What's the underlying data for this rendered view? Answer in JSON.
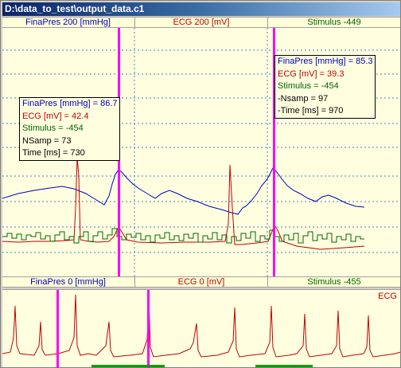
{
  "window": {
    "title": "D:\\data_to_test\\output_data.c1"
  },
  "top_header": {
    "ch1": "FinaPres 200 [mmHg]",
    "ch2": "ECG 200 [mV]",
    "ch3": "Stimulus -449"
  },
  "bottom_header": {
    "ch1": "FinaPres 0 [mmHg]",
    "ch2": "ECG 0 [mV]",
    "ch3": "Stimulus -455"
  },
  "tooltip_left": {
    "finapres": "FinaPres [mmHg] = 86.7",
    "ecg": "ECG [mV] = 42.4",
    "stimulus": "Stimulus = -454",
    "nsamp": "NSamp = 73",
    "time": "Time [ms] = 730"
  },
  "tooltip_right": {
    "finapres": "FinaPres [mmHg] = 85.3",
    "ecg": "ECG [mV] = 39.3",
    "stimulus": "Stimulus = -454",
    "nsamp": "-Nsamp = 97",
    "time": "-Time [ms] = 970"
  },
  "bottom_plot": {
    "label": "ECG"
  },
  "colors": {
    "finapres": "#0000c0",
    "ecg": "#c00000",
    "stimulus": "#006400",
    "cursor": "#ff00ff",
    "background": "#ffffe0"
  }
}
